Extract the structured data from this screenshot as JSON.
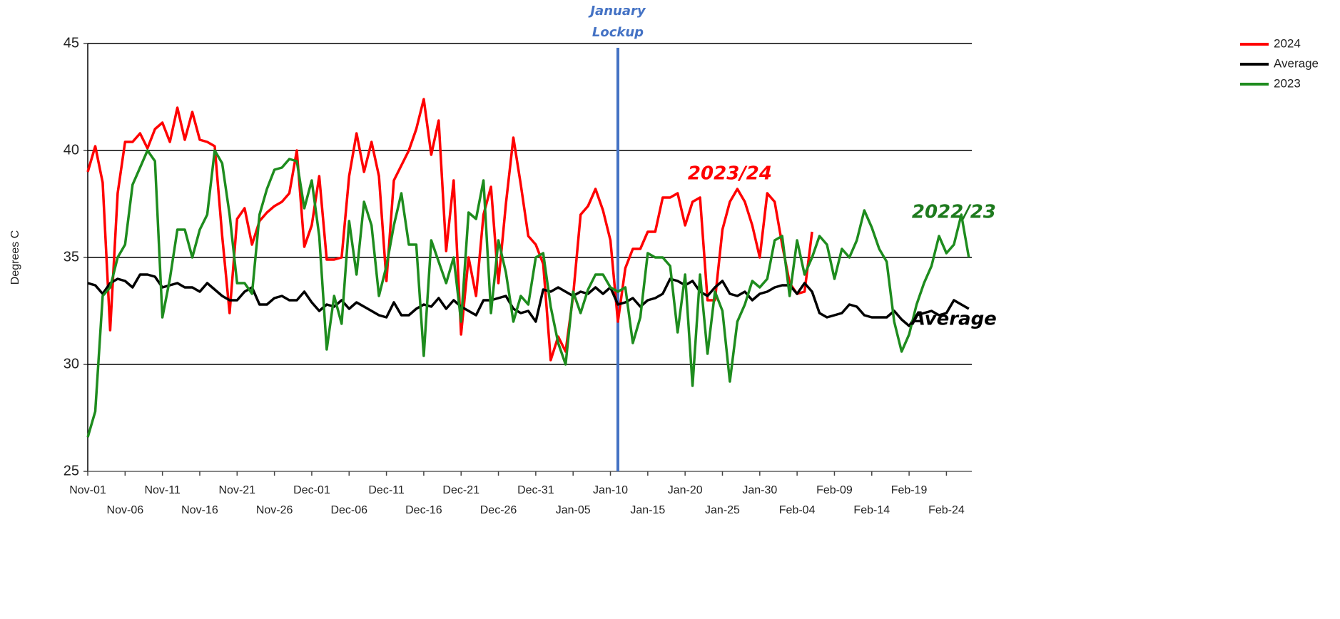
{
  "chart_data": {
    "type": "line",
    "y_label": "Degrees C",
    "ylim": [
      25,
      45
    ],
    "yticks": [
      25,
      30,
      35,
      40,
      45
    ],
    "grid": true,
    "legend": "top-right",
    "categories": [
      "Nov-01",
      null,
      null,
      null,
      null,
      "Nov-06",
      null,
      null,
      null,
      null,
      "Nov-11",
      null,
      null,
      null,
      null,
      "Nov-16",
      null,
      null,
      null,
      null,
      "Nov-21",
      null,
      null,
      null,
      null,
      "Nov-26",
      null,
      null,
      null,
      null,
      "Dec-01",
      null,
      null,
      null,
      null,
      "Dec-06",
      null,
      null,
      null,
      null,
      "Dec-11",
      null,
      null,
      null,
      null,
      "Dec-16",
      null,
      null,
      null,
      null,
      "Dec-21",
      null,
      null,
      null,
      null,
      "Dec-26",
      null,
      null,
      null,
      null,
      "Dec-31",
      null,
      null,
      null,
      null,
      "Jan-05",
      null,
      null,
      null,
      null,
      "Jan-10",
      null,
      null,
      null,
      null,
      "Jan-15",
      null,
      null,
      null,
      null,
      "Jan-20",
      null,
      null,
      null,
      null,
      "Jan-25",
      null,
      null,
      null,
      null,
      "Jan-30",
      null,
      null,
      null,
      null,
      "Feb-04",
      null,
      null,
      null,
      null,
      "Feb-09",
      null,
      null,
      null,
      null,
      "Feb-14",
      null,
      null,
      null,
      null,
      "Feb-19",
      null,
      null,
      null,
      null,
      "Feb-24",
      null,
      null,
      null
    ],
    "series": [
      {
        "name": "2024",
        "color": "#ff0000",
        "values": [
          39.0,
          40.2,
          38.5,
          31.6,
          38.0,
          40.4,
          40.4,
          40.8,
          40.1,
          41.0,
          41.3,
          40.4,
          42.0,
          40.5,
          41.8,
          40.5,
          40.4,
          40.2,
          36.0,
          32.4,
          36.8,
          37.3,
          35.6,
          36.7,
          37.1,
          37.4,
          37.6,
          38.0,
          40.0,
          35.5,
          36.5,
          38.8,
          34.9,
          34.9,
          35.0,
          38.8,
          40.8,
          39.0,
          40.4,
          38.8,
          33.9,
          38.6,
          39.3,
          40.0,
          41.0,
          42.4,
          39.8,
          41.4,
          35.3,
          38.6,
          31.4,
          35.0,
          33.2,
          37.0,
          38.3,
          33.8,
          37.5,
          40.6,
          38.4,
          36.0,
          35.6,
          34.7,
          30.2,
          31.3,
          30.6,
          33.2,
          37.0,
          37.4,
          38.2,
          37.2,
          35.8,
          32.0,
          34.5,
          35.4,
          35.4,
          36.2,
          36.2,
          37.8,
          37.8,
          38.0,
          36.5,
          37.6,
          37.8,
          33.0,
          33.0,
          36.3,
          37.6,
          38.2,
          37.6,
          36.5,
          35.0,
          38.0,
          37.6,
          35.6,
          33.8,
          33.3,
          33.4,
          36.2,
          null,
          null,
          null,
          null,
          null,
          null,
          null,
          null,
          null,
          null,
          null,
          null,
          null,
          null,
          null,
          null,
          null,
          null,
          null,
          null,
          null
        ]
      },
      {
        "name": "Average",
        "color": "#000000",
        "values": [
          33.8,
          33.7,
          33.3,
          33.8,
          34.0,
          33.9,
          33.6,
          34.2,
          34.2,
          34.1,
          33.6,
          33.7,
          33.8,
          33.6,
          33.6,
          33.4,
          33.8,
          33.5,
          33.2,
          33.0,
          33.0,
          33.4,
          33.6,
          32.8,
          32.8,
          33.1,
          33.2,
          33.0,
          33.0,
          33.4,
          32.9,
          32.5,
          32.8,
          32.7,
          33.0,
          32.6,
          32.9,
          32.7,
          32.5,
          32.3,
          32.2,
          32.9,
          32.3,
          32.3,
          32.6,
          32.8,
          32.7,
          33.1,
          32.6,
          33.0,
          32.7,
          32.5,
          32.3,
          33.0,
          33.0,
          33.1,
          33.2,
          32.6,
          32.4,
          32.5,
          32.0,
          33.5,
          33.4,
          33.6,
          33.4,
          33.2,
          33.4,
          33.3,
          33.6,
          33.3,
          33.6,
          32.8,
          32.9,
          33.1,
          32.7,
          33.0,
          33.1,
          33.3,
          34.0,
          33.9,
          33.7,
          33.9,
          33.4,
          33.2,
          33.6,
          33.9,
          33.3,
          33.2,
          33.4,
          33.0,
          33.3,
          33.4,
          33.6,
          33.7,
          33.7,
          33.3,
          33.8,
          33.4,
          32.4,
          32.2,
          32.3,
          32.4,
          32.8,
          32.7,
          32.3,
          32.2,
          32.2,
          32.2,
          32.5,
          32.1,
          31.8,
          32.3,
          32.4,
          32.5,
          32.3,
          32.4,
          33.0,
          32.8,
          32.6
        ]
      },
      {
        "name": "2023",
        "color": "#1e8c1e",
        "values": [
          26.6,
          27.8,
          33.2,
          33.6,
          35.0,
          35.6,
          38.4,
          39.2,
          40.0,
          39.5,
          32.2,
          34.0,
          36.3,
          36.3,
          35.0,
          36.3,
          37.0,
          40.0,
          39.4,
          37.0,
          33.8,
          33.8,
          33.3,
          37.0,
          38.2,
          39.1,
          39.2,
          39.6,
          39.5,
          37.3,
          38.6,
          36.0,
          30.7,
          33.2,
          31.9,
          36.7,
          34.2,
          37.6,
          36.5,
          33.2,
          34.6,
          36.5,
          38.0,
          35.6,
          35.6,
          30.4,
          35.8,
          34.8,
          33.8,
          35.0,
          32.0,
          37.1,
          36.8,
          38.6,
          32.4,
          35.8,
          34.3,
          32.0,
          33.2,
          32.8,
          35.0,
          35.2,
          32.7,
          31.0,
          30.0,
          33.4,
          32.4,
          33.5,
          34.2,
          34.2,
          33.6,
          33.4,
          33.6,
          31.0,
          32.2,
          35.2,
          35.0,
          35.0,
          34.6,
          31.5,
          34.2,
          29.0,
          34.2,
          30.5,
          33.4,
          32.5,
          29.2,
          32.0,
          32.8,
          33.9,
          33.6,
          34.0,
          35.8,
          36.0,
          33.2,
          35.8,
          34.2,
          35.0,
          36.0,
          35.6,
          34.0,
          35.4,
          35.0,
          35.8,
          37.2,
          36.4,
          35.4,
          34.8,
          32.0,
          30.6,
          31.4,
          32.8,
          33.8,
          34.6,
          36.0,
          35.2,
          35.6,
          37.0,
          35.0
        ]
      }
    ],
    "vertical_line": {
      "at_index": 71,
      "color": "#4472c4",
      "label": [
        "January",
        "Lockup"
      ]
    },
    "annotations": [
      {
        "text": "2023/24",
        "color": "#ff0000",
        "at_index": 86,
        "y": 38.9
      },
      {
        "text": "2022/23",
        "color": "#1e7a1e",
        "at_index": 116,
        "y": 37.1
      },
      {
        "text": "Average",
        "color": "#000000",
        "at_index": 116,
        "y": 32.1
      }
    ]
  }
}
